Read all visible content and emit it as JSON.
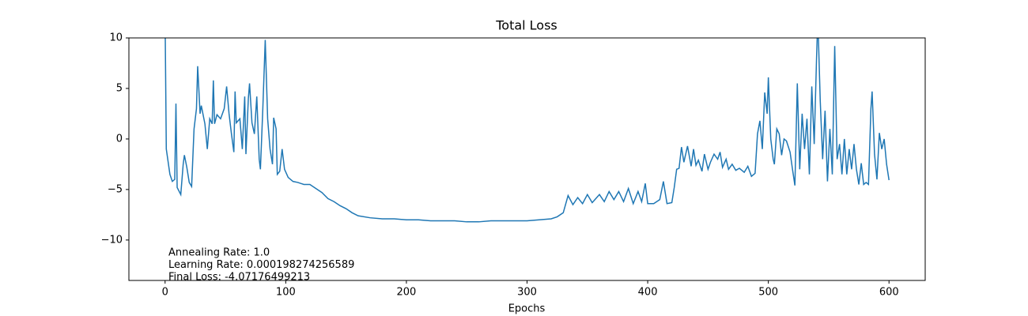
{
  "chart_data": {
    "type": "line",
    "title": "Total Loss",
    "x_label": "Epochs",
    "annotations": [
      "Annealing Rate: 1.0",
      "Learning Rate: 0.000198274256589",
      "Final Loss: -4.07176499213"
    ],
    "color": "#1f77b4",
    "xlim": [
      -30,
      630
    ],
    "xticks": [
      0,
      100,
      200,
      300,
      400,
      500,
      600
    ],
    "ylim": [
      -14,
      10
    ],
    "yticks": [
      {
        "value": -10,
        "label": "−10"
      },
      {
        "value": -5,
        "label": "−5"
      },
      0,
      5,
      10
    ],
    "x": [
      0,
      1,
      4,
      6,
      8,
      9,
      10,
      13,
      15,
      16,
      18,
      20,
      22,
      24,
      26,
      27,
      29,
      30,
      33,
      35,
      37,
      39,
      40,
      41,
      43,
      46,
      49,
      51,
      53,
      55,
      57,
      58,
      59,
      62,
      64,
      66,
      67,
      69,
      70,
      72,
      74,
      76,
      78,
      79,
      81,
      83,
      85,
      87,
      89,
      90,
      92,
      93,
      95,
      97,
      99,
      102,
      106,
      110,
      115,
      120,
      125,
      130,
      135,
      140,
      145,
      150,
      155,
      160,
      170,
      180,
      190,
      200,
      210,
      220,
      230,
      240,
      250,
      260,
      270,
      280,
      290,
      300,
      310,
      320,
      325,
      330,
      334,
      338,
      342,
      346,
      350,
      354,
      360,
      364,
      368,
      372,
      376,
      380,
      384,
      388,
      392,
      395,
      398,
      400,
      405,
      410,
      413,
      416,
      420,
      422,
      424,
      426,
      428,
      430,
      433,
      436,
      438,
      440,
      442,
      445,
      447,
      450,
      452,
      455,
      458,
      460,
      462,
      465,
      467,
      470,
      473,
      476,
      480,
      483,
      486,
      489,
      491,
      493,
      495,
      497,
      499,
      500,
      502,
      504,
      505,
      507,
      509,
      511,
      513,
      515,
      518,
      520,
      522,
      524,
      526,
      528,
      530,
      532,
      534,
      536,
      538,
      540,
      541,
      543,
      545,
      547,
      549,
      551,
      553,
      555,
      557,
      559,
      561,
      563,
      565,
      567,
      569,
      571,
      573,
      575,
      577,
      579,
      581,
      583,
      585,
      586,
      588,
      590,
      592,
      594,
      596,
      598,
      600
    ],
    "values": [
      12,
      -1,
      -3.5,
      -4.2,
      -4,
      3.5,
      -4.8,
      -5.5,
      -2.5,
      -1.6,
      -2.8,
      -4.3,
      -4.7,
      1,
      3,
      7.2,
      2.5,
      3.3,
      1.5,
      -1,
      2,
      1.5,
      5.8,
      1.5,
      2.4,
      2,
      3,
      5.2,
      2.5,
      0.5,
      -1.3,
      4.7,
      1.6,
      2,
      -1,
      4.2,
      -1.5,
      4,
      5.5,
      1.6,
      0.5,
      4.2,
      -2,
      -3,
      3,
      9.8,
      2,
      -1,
      -2.5,
      2.1,
      1,
      -3.5,
      -3.2,
      -1,
      -3,
      -3.8,
      -4.2,
      -4.3,
      -4.5,
      -4.5,
      -4.9,
      -5.3,
      -5.9,
      -6.2,
      -6.6,
      -6.9,
      -7.3,
      -7.6,
      -7.8,
      -7.9,
      -7.9,
      -8,
      -8,
      -8.1,
      -8.1,
      -8.1,
      -8.2,
      -8.2,
      -8.1,
      -8.1,
      -8.1,
      -8.1,
      -8,
      -7.9,
      -7.7,
      -7.3,
      -5.6,
      -6.5,
      -5.8,
      -6.4,
      -5.5,
      -6.3,
      -5.5,
      -6.2,
      -5.2,
      -6,
      -5.2,
      -6.2,
      -4.9,
      -6.4,
      -5.2,
      -6.2,
      -4.4,
      -6.4,
      -6.4,
      -6,
      -4.2,
      -6.4,
      -6.3,
      -4.8,
      -3,
      -2.9,
      -0.8,
      -2.3,
      -0.7,
      -2.7,
      -1,
      -2.6,
      -2.1,
      -3.2,
      -1.5,
      -3,
      -2.3,
      -1.5,
      -2,
      -1.3,
      -2.8,
      -2,
      -3,
      -2.5,
      -3.1,
      -2.9,
      -3.3,
      -2.7,
      -3.7,
      -3.4,
      0.5,
      1.8,
      -1,
      4.6,
      2.5,
      6.1,
      0,
      -2,
      -2.5,
      1,
      0.5,
      -1.6,
      0,
      -0.2,
      -1.3,
      -3,
      -4.6,
      5.5,
      -3,
      2.5,
      -1,
      2,
      -3.5,
      5.2,
      -0.5,
      8.2,
      12,
      3.8,
      -2,
      2.8,
      -4.2,
      1,
      -3.5,
      9.2,
      -2,
      -0.5,
      -3.5,
      0,
      -3.5,
      -1,
      -3,
      -0.5,
      -3,
      -4.5,
      -2.4,
      -4.5,
      -4.3,
      -4.5,
      3,
      4.7,
      -1.5,
      -4,
      0.6,
      -1,
      0,
      -2.5,
      -4.07
    ]
  }
}
